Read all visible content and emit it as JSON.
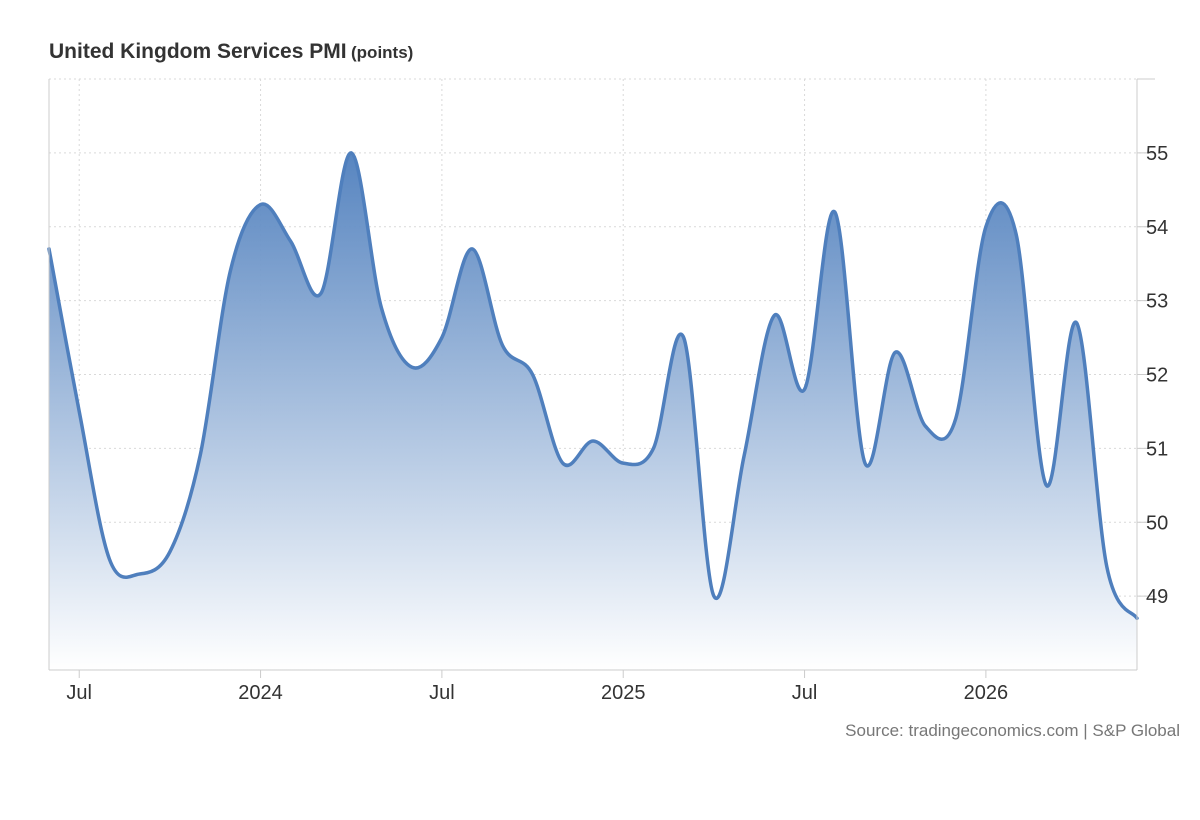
{
  "title": "United Kingdom Services PMI",
  "title_unit": "(points)",
  "source": "Source: tradingeconomics.com | S&P Global",
  "colors": {
    "line": "#4f7fbd",
    "fill_top": "#4f7fbd",
    "fill_bottom": "#ffffff",
    "grid": "#d9d9d9",
    "text": "#333333"
  },
  "chart_data": {
    "type": "area",
    "title": "United Kingdom Services PMI",
    "unit": "points",
    "ylim": [
      48.0,
      56.0
    ],
    "yticks": [
      49,
      50,
      51,
      52,
      53,
      54,
      55
    ],
    "xticks": [
      {
        "date": "2023-07",
        "label": "Jul"
      },
      {
        "date": "2024-01",
        "label": "2024"
      },
      {
        "date": "2024-07",
        "label": "Jul"
      },
      {
        "date": "2025-01",
        "label": "2025"
      },
      {
        "date": "2025-07",
        "label": "Jul"
      },
      {
        "date": "2026-01",
        "label": "2026"
      }
    ],
    "grid": true,
    "legend": "none",
    "series": [
      {
        "x": [
          "2023-06",
          "2023-07",
          "2023-08",
          "2023-09",
          "2023-10",
          "2023-11",
          "2023-12",
          "2024-01",
          "2024-02",
          "2024-03",
          "2024-04",
          "2024-05",
          "2024-06",
          "2024-07",
          "2024-08",
          "2024-09",
          "2024-10",
          "2024-11",
          "2024-12",
          "2025-01",
          "2025-02",
          "2025-03",
          "2025-04",
          "2025-05",
          "2025-06",
          "2025-07",
          "2025-08",
          "2025-09",
          "2025-10",
          "2025-11",
          "2025-12",
          "2026-01",
          "2026-02",
          "2026-03",
          "2026-04",
          "2026-05",
          "2026-06"
        ],
        "values": [
          53.7,
          51.5,
          49.5,
          49.3,
          49.6,
          50.9,
          53.4,
          54.3,
          53.8,
          53.1,
          55.0,
          52.9,
          52.1,
          52.5,
          53.7,
          52.4,
          52.0,
          50.8,
          51.1,
          50.8,
          51.0,
          52.5,
          49.0,
          50.9,
          52.8,
          51.8,
          54.2,
          50.8,
          52.3,
          51.3,
          51.4,
          54.0,
          53.9,
          50.5,
          52.7,
          49.4,
          48.7
        ]
      }
    ]
  }
}
